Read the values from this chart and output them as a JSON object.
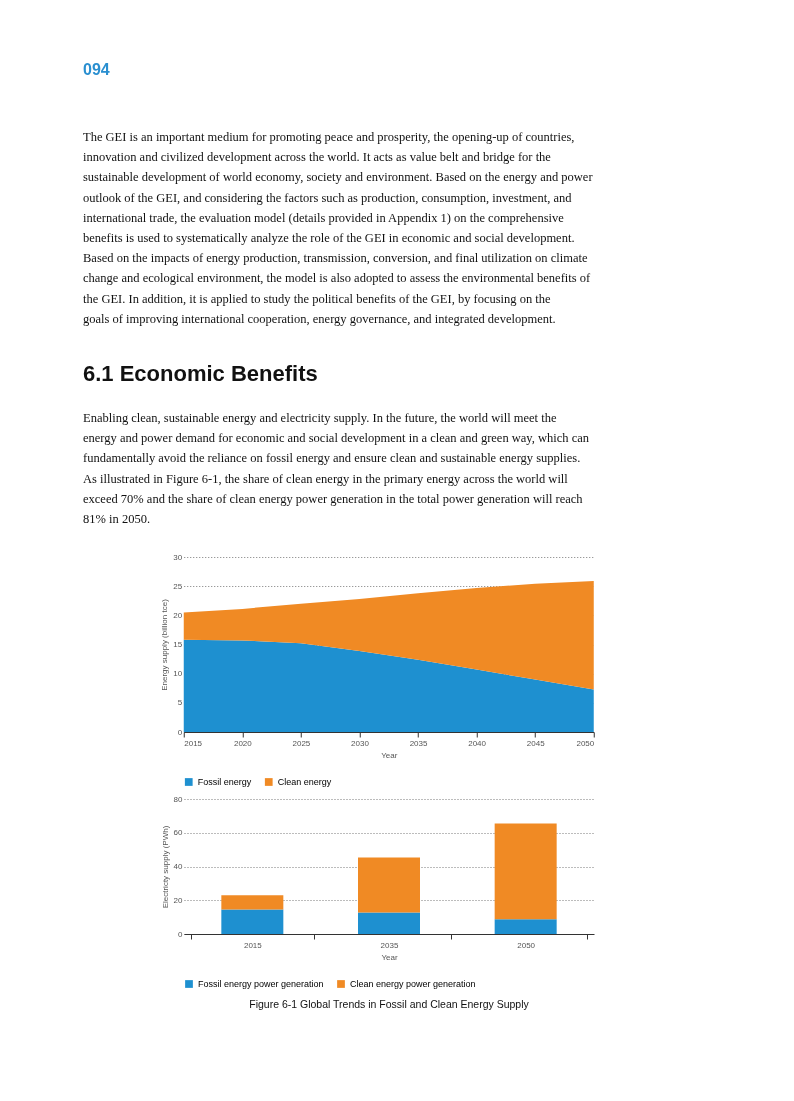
{
  "chart_data": [
    {
      "type": "area",
      "stacked": true,
      "title": "6.1 Economic Benefits",
      "annotations": [
        "094",
        "The GEI is an important medium for promoting peace and prosperity, the opening-up of countries, innovation and civilized development across the world. It acts as value belt and bridge for the sustainable development of world economy, society and environment. Based on the energy and power outlook of the GEI, and considering the factors such as production, consumption, investment, and international trade, the evaluation model (details provided in Appendix 1) on the comprehensive benefits is used to systematically analyze the role of the GEI in economic and social development. Based on the impacts of energy production, transmission, conversion, and final utilization on climate change and ecological environment, the model is also adopted to assess the environmental benefits of the GEI. In addition, it is applied to study the political benefits of the GEI, by focusing on the goals of improving international cooperation, energy governance, and integrated development.",
        "Enabling clean, sustainable energy and electricity supply. In the future, the world will meet the energy and power demand for economic and social development in a clean and green way, which can fundamentally avoid the reliance on fossil energy and ensure clean and sustainable energy supplies. As illustrated in Figure 6-1, the share of clean energy in the primary energy across the world will exceed 70% and the share of clean energy power generation in the total power generation will reach 81% in 2050."
      ],
      "x": [
        2015,
        2020,
        2025,
        2030,
        2035,
        2040,
        2045,
        2050
      ],
      "xlim": [
        2015,
        2050
      ],
      "xticks": [
        2015,
        2020,
        2025,
        2030,
        2035,
        2040,
        2045,
        2050
      ],
      "ylim": [
        0,
        30
      ],
      "yticks": [
        0,
        5,
        10,
        15,
        20,
        25,
        30
      ],
      "xlabel": "Year",
      "ylabel": "Energy supply (billion tce)",
      "legend": "bottom",
      "grid": "y",
      "series": [
        {
          "name": "Fossil energy",
          "color": "#1e90d0",
          "values": [
            15.8,
            15.7,
            15.2,
            13.9,
            12.4,
            10.7,
            9.0,
            7.3
          ]
        },
        {
          "name": "Clean energy",
          "color": "#f08a24",
          "values": [
            4.7,
            5.4,
            6.8,
            8.9,
            11.4,
            14.0,
            16.4,
            18.6
          ]
        }
      ]
    },
    {
      "type": "bar",
      "stacked": true,
      "annotations": [
        "Figure 6-1    Global Trends in Fossil and Clean Energy Supply"
      ],
      "categories": [
        "2015",
        "2035",
        "2050"
      ],
      "ylim": [
        0,
        80
      ],
      "yticks": [
        0,
        20,
        40,
        60,
        80
      ],
      "xlabel": "Year",
      "ylabel": "Electricty supply (PWh)",
      "legend": "bottom",
      "grid": "y",
      "series": [
        {
          "name": "Fossil energy power generation",
          "color": "#1e90d0",
          "values": [
            14.5,
            12.7,
            8.7
          ]
        },
        {
          "name": "Clean energy power generation",
          "color": "#f08a24",
          "values": [
            8.5,
            32.7,
            56.8
          ]
        }
      ]
    }
  ]
}
